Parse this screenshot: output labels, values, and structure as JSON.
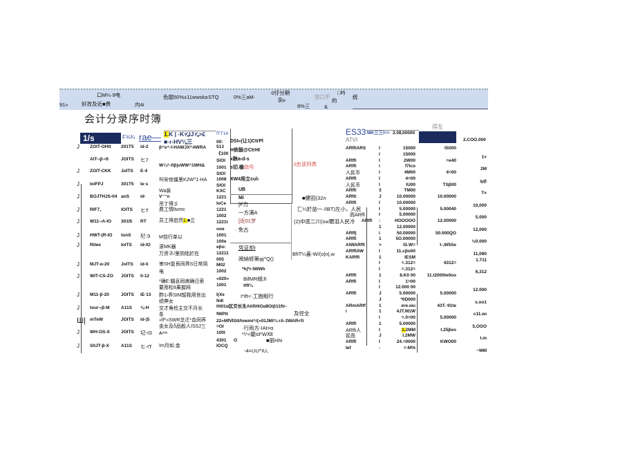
{
  "header_band": [
    "口M¼·9电",
    "91»",
    "好孜及近■费",
    "内4i",
    "色圄50%±11wwska",
    "STQ",
    "0%三aM·",
    "·0仔分期",
    "9»",
    "8%三",
    "窗口不",
    "&",
    "的",
    "□吟",
    "统"
  ],
  "title": "会计分录序时簿",
  "column_header": {
    "selected_box": "1/s",
    "c1": "F⅝¾",
    "c2": "rae—",
    "c3_hl": "1.",
    "c3a": "K | ·K⅝lJ⅞>£",
    "c3b": "■·r-HV⅛三",
    "c4a": "fTT14",
    "c4b": "00:",
    "right_a": "ES33",
    "right_b": "ATVI",
    "right_c": "MK三三I=>",
    "right_d": "2.0Ⅱ,00000",
    "right_e": "得左",
    "right_total": "2.COO.000"
  },
  "rows": [
    [
      "J",
      "ZOIT-OHtt",
      "201T5",
      "id-2"
    ],
    [
      "",
      "AIT-‹β-‹tt",
      "JOITS",
      "ヒ7"
    ],
    [
      "J",
      "ZOIT-CKK",
      "JoITS",
      "E·4"
    ],
    [
      "J",
      "IolFPJ",
      "301T5",
      "le·s"
    ],
    [
      "J",
      "BOJTHJS-04",
      "anS",
      "id·"
    ],
    [
      "J",
      "RIF7、",
      "IOITS",
      "ヒT"
    ],
    [
      "J",
      "W11-‹A-IO",
      "301I5",
      "RT"
    ],
    [
      "J",
      "HWT-(R-IO",
      "tonS",
      "玘·9"
    ],
    [
      "J",
      "Ritee",
      "IolTS",
      "id-IO"
    ],
    [
      "J",
      "MJT-α-20",
      "JoITS",
      "id-li"
    ],
    [
      "J",
      "WIT-CS-ZO",
      "JOITS",
      "0-12"
    ],
    [
      "J",
      "M11-β-20",
      "JOITS",
      "iE·13"
    ],
    [
      "J",
      "tour-‹β-M",
      "A11S",
      "⅛·H"
    ],
    [
      "Ш|",
      "mTeW",
      "JOITS",
      "id·|5"
    ],
    [
      "J",
      "WH-OS-X",
      "JOITS",
      "圮-IS"
    ],
    [
      "J",
      "S0JT-β-X",
      "A11S",
      "ヒ-IT"
    ]
  ],
  "descriptions": [
    "β^s^-l-HAWJX^AWRA",
    "W¼^-fiβ|sWW^1WHΔ",
    "叫安他僵里K2W^1-HA",
    "Wa装",
    "V⁻⁻n",
    "吊丁得彡",
    "费工情ltumc",
    "员工得启然",
    "■立",
    "M恺行单以",
    "滚MK器",
    "万资ネ/里阴绌於在",
    "审SH复艮同界S日常用",
    "电",
    "*确E:髓息同病确日索",
    "要用松8果握网",
    "酢1›界SIM韶我用世出",
    "绩弊女",
    "交才角检主交不月长",
    "条",
    "«lf*»SWR芝迁*血同荞",
    "金女及δ品般人ISSJ三",
    "A^^",
    "Im月如.金"
  ],
  "desc_highlight": "1.",
  "accounts": [
    "513",
    "《100",
    "SIOI",
    "1001",
    "SIOI",
    "1008",
    "SIOI",
    "KXC",
    "1221",
    "IoCe",
    "1221",
    "1002",
    "1221t",
    "ooe",
    "1001",
    "100e",
    "eβo:",
    "12211",
    "005",
    "M02",
    "1002",
    "«020»",
    "1001",
    "I(Xe",
    "N4I",
    "fWPtt",
    "=OI",
    "100I",
    "4301",
    "IOCQ"
  ],
  "context_menu": {
    "items": [
      "DSI«(让1)CtrPl",
      "H依鼓@CtrHI",
      "x鞅a‹d-s",
      "s切.椽",
      "XW4用立cul›",
      "UB",
      "Mi"
    ],
    "red_suffix": "踪闯",
    "hint": "3击该列表"
  },
  "middle_texts": [
    "[F力",
    "一方浦A",
    "[近01岁",
    "· 免古",
    "凭证却t",
    "阅納修第φj^Q()",
    "*h|*r-IWWh",
    "BifMR綬Jl",
    "tffl¾",
    "I*ift<·工困組行",
    "Hi01α区交长生AtifiHiGαⅡOiβ11ftr-",
    "及径全",
    "22«MfⅥStt/lowmi^/(»01JMI¾·rA·2WAR<fi",
    "·行両方-IAt=α",
    "*\\*<龍Id*WⅫ",
    "O",
    "■丽Hhi",
    "-4=UU^IU、",
    "■健田(32л",
    "匚¼於益一·/IBT)左小，人民",
    "(2)中底二川(sw爾泪人民冷",
    "BfiT¼盖-W/(o|n|,w"
  ],
  "right_rows": [
    [
      "ARffiARS",
      "I",
      "15000",
      "IS000",
      ""
    ],
    [
      "",
      "I",
      "15000",
      "",
      "1×"
    ],
    [
      "ARffi",
      "I",
      "2W00",
      "=e40",
      ""
    ],
    [
      "ARffi",
      "i",
      "f7lco",
      "",
      "2M"
    ],
    [
      "人民币",
      "I",
      "4M00",
      "4=00",
      ""
    ],
    [
      "ARffi",
      "I",
      "4=00",
      "",
      "iμβ"
    ],
    [
      "人民币",
      "I",
      "IU00",
      "TSβ00",
      ""
    ],
    [
      "ARffi",
      "3",
      "TM00",
      "",
      "T×"
    ],
    [
      "ARfti",
      "J",
      "10.00000",
      "10.00000",
      ""
    ],
    [
      "ARffi",
      "I",
      "10.00000",
      "",
      "10,000"
    ],
    [
      "",
      "I",
      "5.00000",
      "5.00040",
      ""
    ],
    [
      "而ARffi",
      "I",
      "5.00000",
      "",
      "5.000"
    ],
    [
      "ARffi",
      ":",
      "HOOOOO",
      "12.00000",
      ""
    ],
    [
      "",
      "1",
      "12.00000",
      "",
      "12,000"
    ],
    [
      "ARffj",
      "i",
      "50.00000",
      "50.000QO",
      ""
    ],
    [
      "ARffi",
      "1",
      "5O.00000",
      "",
      "½0.000"
    ],
    [
      "AlWARffi",
      ">",
      "IS.W=",
      "t-,W5Se",
      ""
    ],
    [
      "ARffIAW",
      "I",
      "11.cβo00",
      "",
      "11,080"
    ],
    [
      "KARffi",
      "1",
      "IESM",
      "",
      "1.711"
    ],
    [
      "",
      "I",
      "=.312=",
      "4312=",
      ""
    ],
    [
      "",
      "I",
      "=.312=",
      "",
      "6,312"
    ],
    [
      "ARffi",
      "1",
      "8.K0 00",
      "11.t2000Ie0oo",
      ""
    ],
    [
      "ARffi",
      "I",
      "1=00",
      "",
      ""
    ],
    [
      "",
      "I",
      "12.000 00",
      "",
      "12.000"
    ],
    [
      "ARffi",
      "J",
      "5.00000",
      "5.00000",
      ""
    ],
    [
      "",
      "J",
      "*0D000",
      "",
      "s.oo1"
    ],
    [
      "ARmARff",
      "1",
      "ere.wu",
      "43T.·91te",
      ""
    ],
    [
      "i",
      "1",
      "4JT.M1W",
      "",
      "c11.wι"
    ],
    [
      "",
      "I",
      "=.0=00",
      "5.00000",
      ""
    ],
    [
      "ARffi",
      "1",
      "5.00000",
      "",
      "5,OOO"
    ],
    [
      "ARffi人",
      "I",
      "1.2MM",
      "t.25βeo",
      ""
    ],
    [
      "民而",
      "J",
      "I.2MW",
      "",
      "t.m"
    ],
    [
      "ARffi",
      "I",
      "24.=0000",
      "KWO00",
      ""
    ],
    [
      "Ief",
      "-",
      "=-M%",
      "",
      "~MM"
    ]
  ],
  "colors": {
    "band": "#cfdbef",
    "navy": "#1b2b5e",
    "highlight": "#ffef00",
    "red_text": "#d9534f",
    "blue_text": "#2a4a9a"
  }
}
